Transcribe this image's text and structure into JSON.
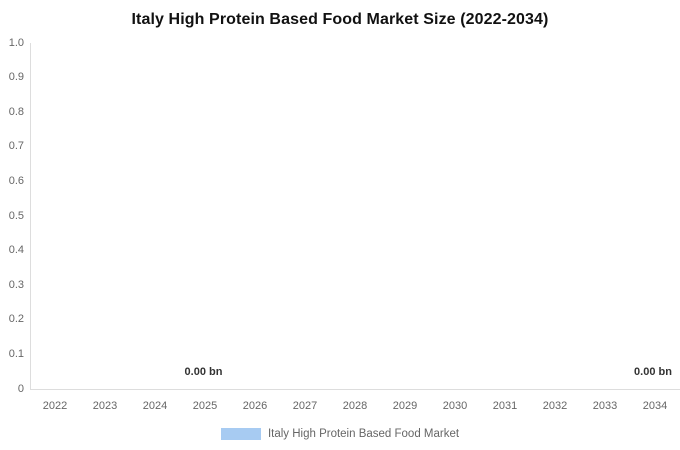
{
  "title": "Italy High Protein Based Food Market Size (2022-2034)",
  "chart_data": {
    "type": "bar",
    "title": "Italy High Protein Based Food Market Size (2022-2034)",
    "categories": [
      "2022",
      "2023",
      "2024",
      "2025",
      "2026",
      "2027",
      "2028",
      "2029",
      "2030",
      "2031",
      "2032",
      "2033",
      "2034"
    ],
    "series": [
      {
        "name": "Italy High Protein Based Food Market",
        "color": "#a7cbf2",
        "values": [
          0,
          0,
          0,
          0,
          0,
          0,
          0,
          0,
          0,
          0,
          0,
          0,
          0
        ]
      }
    ],
    "data_labels": [
      {
        "category_index": 3,
        "text": "0.00 bn"
      },
      {
        "category_index": 12,
        "text": "0.00 bn"
      }
    ],
    "xlabel": "",
    "ylabel": "",
    "ylim": [
      0,
      1
    ],
    "yticks": [
      "1.0",
      "0.9",
      "0.8",
      "0.7",
      "0.6",
      "0.5",
      "0.4",
      "0.3",
      "0.2",
      "0.1",
      "0"
    ],
    "grid": false,
    "legend_position": "bottom"
  },
  "legend": {
    "label": "Italy High Protein Based Food Market",
    "swatch_color": "#a7cbf2"
  },
  "colors": {
    "background": "#ffffff",
    "title_text": "#111111",
    "axis_line": "#dddddd",
    "axis_label": "#666666",
    "data_label": "#333333",
    "series": "#a7cbf2"
  }
}
